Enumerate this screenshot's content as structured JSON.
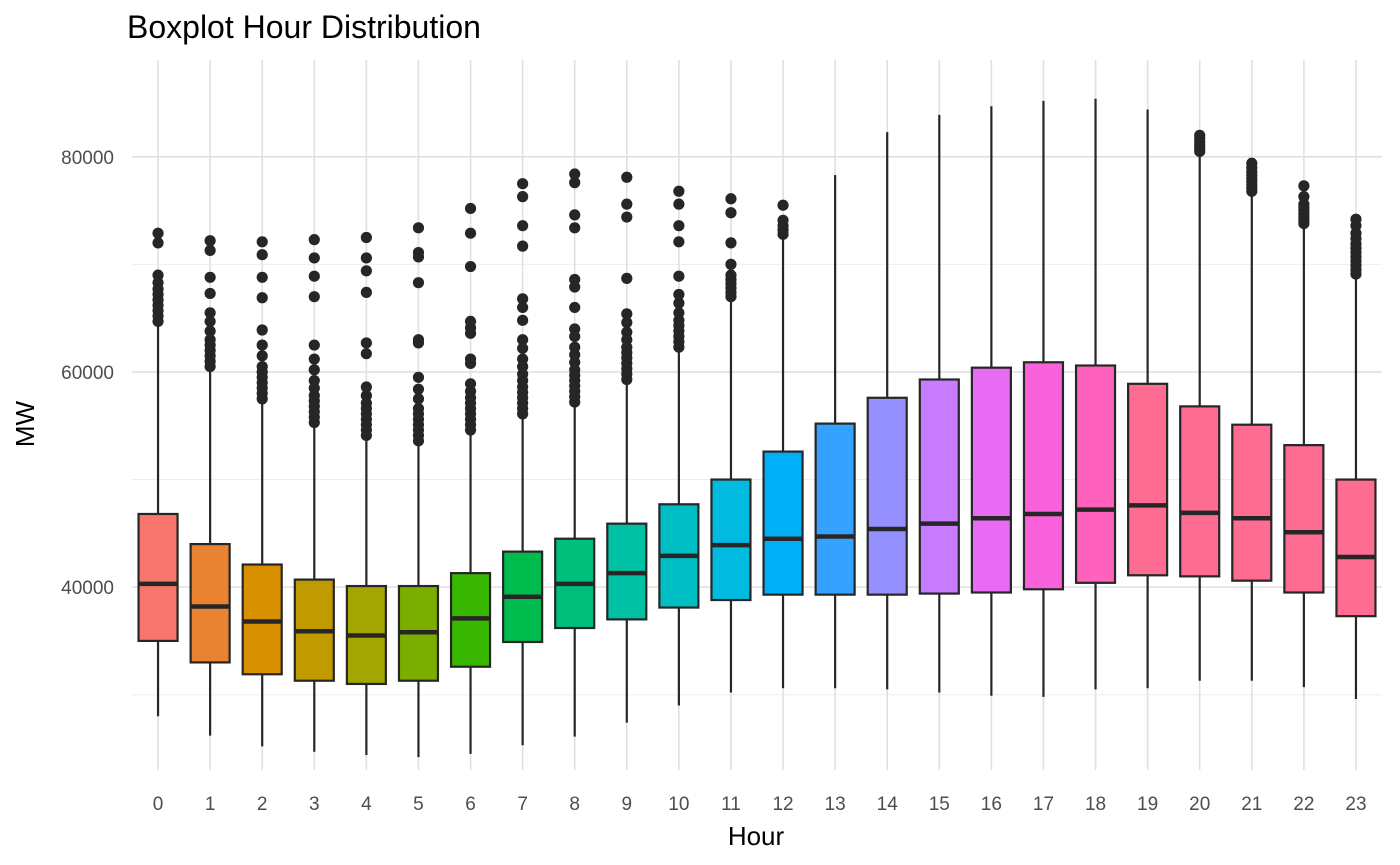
{
  "chart_data": {
    "type": "boxplot",
    "title": "Boxplot Hour Distribution",
    "xlabel": "Hour",
    "ylabel": "MW",
    "y_ticks": [
      40000,
      60000,
      80000
    ],
    "ylim": [
      23000,
      89000
    ],
    "grid": true,
    "legend": "none",
    "categories": [
      "0",
      "1",
      "2",
      "3",
      "4",
      "5",
      "6",
      "7",
      "8",
      "9",
      "10",
      "11",
      "12",
      "13",
      "14",
      "15",
      "16",
      "17",
      "18",
      "19",
      "20",
      "21",
      "22",
      "23"
    ],
    "colors": [
      "#F8766D",
      "#EA8331",
      "#D89000",
      "#C09B00",
      "#A3A500",
      "#7CAE00",
      "#39B600",
      "#00BB4E",
      "#00BF7D",
      "#00C1A3",
      "#00BFC4",
      "#00BAE0",
      "#00B0F6",
      "#35A2FF",
      "#9590FF",
      "#C77CFF",
      "#E76BF3",
      "#FA62DB",
      "#FF62BC",
      "#FF6C91",
      "#FF6C91",
      "#FF6C91",
      "#FF6C91",
      "#FF6C91"
    ],
    "boxes": [
      {
        "hour": "0",
        "min": 28000,
        "q1": 35000,
        "median": 40300,
        "q3": 46800,
        "max": 64300,
        "outliers": [
          64700,
          65200,
          65700,
          66200,
          66700,
          67200,
          67700,
          68300,
          69000,
          72000,
          72900
        ]
      },
      {
        "hour": "1",
        "min": 26200,
        "q1": 33000,
        "median": 38200,
        "q3": 44000,
        "max": 60200,
        "outliers": [
          60500,
          61000,
          61500,
          62000,
          62500,
          63000,
          63800,
          64700,
          65500,
          67300,
          68800,
          71300,
          72200
        ]
      },
      {
        "hour": "2",
        "min": 25200,
        "q1": 31900,
        "median": 36800,
        "q3": 42100,
        "max": 57300,
        "outliers": [
          57500,
          58000,
          58500,
          59000,
          59500,
          60000,
          60500,
          61500,
          62500,
          63900,
          66900,
          68800,
          70900,
          72100
        ]
      },
      {
        "hour": "3",
        "min": 24700,
        "q1": 31300,
        "median": 35900,
        "q3": 40700,
        "max": 55000,
        "outliers": [
          55300,
          55800,
          56300,
          56800,
          57300,
          57800,
          58500,
          59200,
          60200,
          61200,
          62500,
          67000,
          68900,
          70600,
          72300
        ]
      },
      {
        "hour": "4",
        "min": 24400,
        "q1": 31000,
        "median": 35500,
        "q3": 40100,
        "max": 53800,
        "outliers": [
          54100,
          54600,
          55100,
          55600,
          56100,
          56600,
          57100,
          57800,
          58600,
          61700,
          62700,
          67400,
          69400,
          70600,
          72500
        ]
      },
      {
        "hour": "5",
        "min": 24200,
        "q1": 31300,
        "median": 35800,
        "q3": 40100,
        "max": 53300,
        "outliers": [
          53600,
          54100,
          54600,
          55100,
          55600,
          56100,
          56600,
          57500,
          58400,
          59500,
          62700,
          63000,
          68300,
          70700,
          71100,
          73400
        ]
      },
      {
        "hour": "6",
        "min": 24500,
        "q1": 32600,
        "median": 37100,
        "q3": 41300,
        "max": 54300,
        "outliers": [
          54600,
          55100,
          55600,
          56100,
          56600,
          57100,
          57600,
          58200,
          58900,
          60800,
          61200,
          63600,
          64100,
          64700,
          69800,
          72900,
          75200
        ]
      },
      {
        "hour": "7",
        "min": 25300,
        "q1": 34900,
        "median": 39100,
        "q3": 43300,
        "max": 55800,
        "outliers": [
          56100,
          56600,
          57100,
          57600,
          58100,
          58600,
          59200,
          59800,
          60500,
          61200,
          62200,
          63000,
          64800,
          66000,
          66800,
          71700,
          73600,
          76300,
          77500
        ]
      },
      {
        "hour": "8",
        "min": 26100,
        "q1": 36200,
        "median": 40300,
        "q3": 44500,
        "max": 56900,
        "outliers": [
          57200,
          57700,
          58200,
          58700,
          59200,
          59700,
          60200,
          60900,
          61600,
          62300,
          63300,
          64000,
          66000,
          67900,
          68600,
          73400,
          74600,
          77600,
          78400
        ]
      },
      {
        "hour": "9",
        "min": 27400,
        "q1": 37000,
        "median": 41300,
        "q3": 45900,
        "max": 59000,
        "outliers": [
          59300,
          59800,
          60300,
          60800,
          61300,
          61800,
          62300,
          63000,
          63700,
          64600,
          65400,
          68700,
          74400,
          75600,
          78100
        ]
      },
      {
        "hour": "10",
        "min": 29000,
        "q1": 38100,
        "median": 42900,
        "q3": 47700,
        "max": 62000,
        "outliers": [
          62300,
          62800,
          63300,
          63800,
          64300,
          64800,
          65500,
          66400,
          67200,
          68900,
          72100,
          73600,
          75600,
          76800
        ]
      },
      {
        "hour": "11",
        "min": 30200,
        "q1": 38800,
        "median": 43900,
        "q3": 50000,
        "max": 66700,
        "outliers": [
          67000,
          67400,
          67800,
          68200,
          68600,
          69000,
          70000,
          72000,
          74800,
          76100
        ]
      },
      {
        "hour": "12",
        "min": 30600,
        "q1": 39300,
        "median": 44500,
        "q3": 52600,
        "max": 72500,
        "outliers": [
          72800,
          73200,
          73600,
          74100,
          75500
        ]
      },
      {
        "hour": "13",
        "min": 30600,
        "q1": 39300,
        "median": 44700,
        "q3": 55200,
        "max": 78300,
        "outliers": []
      },
      {
        "hour": "14",
        "min": 30500,
        "q1": 39300,
        "median": 45400,
        "q3": 57600,
        "max": 82300,
        "outliers": []
      },
      {
        "hour": "15",
        "min": 30200,
        "q1": 39400,
        "median": 45900,
        "q3": 59300,
        "max": 83900,
        "outliers": []
      },
      {
        "hour": "16",
        "min": 29900,
        "q1": 39500,
        "median": 46400,
        "q3": 60400,
        "max": 84700,
        "outliers": []
      },
      {
        "hour": "17",
        "min": 29800,
        "q1": 39800,
        "median": 46800,
        "q3": 60900,
        "max": 85200,
        "outliers": []
      },
      {
        "hour": "18",
        "min": 30500,
        "q1": 40400,
        "median": 47200,
        "q3": 60600,
        "max": 85400,
        "outliers": []
      },
      {
        "hour": "19",
        "min": 30600,
        "q1": 41100,
        "median": 47600,
        "q3": 58900,
        "max": 84400,
        "outliers": []
      },
      {
        "hour": "20",
        "min": 31300,
        "q1": 41000,
        "median": 46900,
        "q3": 56800,
        "max": 80200,
        "outliers": [
          80500,
          80800,
          81100,
          81400,
          81700,
          82000
        ]
      },
      {
        "hour": "21",
        "min": 31300,
        "q1": 40600,
        "median": 46400,
        "q3": 55100,
        "max": 76500,
        "outliers": [
          76800,
          77100,
          77400,
          77700,
          78000,
          78300,
          78600,
          79000,
          79400
        ]
      },
      {
        "hour": "22",
        "min": 30700,
        "q1": 39500,
        "median": 45100,
        "q3": 53200,
        "max": 73500,
        "outliers": [
          73800,
          74100,
          74400,
          74700,
          75000,
          75300,
          75600,
          76300,
          77300
        ]
      },
      {
        "hour": "23",
        "min": 29600,
        "q1": 37300,
        "median": 42800,
        "q3": 50000,
        "max": 68600,
        "outliers": [
          69100,
          69500,
          69900,
          70300,
          70700,
          71100,
          71500,
          71900,
          72400,
          72900,
          73600,
          74200
        ]
      }
    ]
  }
}
